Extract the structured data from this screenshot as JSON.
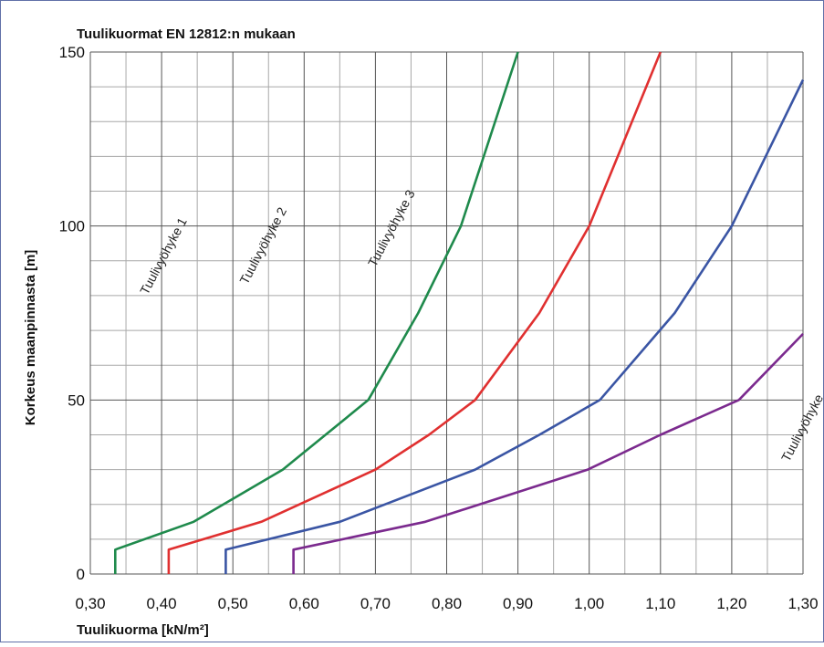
{
  "chart_data": {
    "type": "line",
    "title": "Tuulikuormat EN 12812:n mukaan",
    "xlabel": "Tuulikuorma [kN/m²]",
    "ylabel": "Korkeus maanpinnasta [m]",
    "xlim": [
      0.3,
      1.3
    ],
    "ylim": [
      0,
      150
    ],
    "x_ticks": [
      "0,30",
      "0,40",
      "0,50",
      "0,60",
      "0,70",
      "0,80",
      "0,90",
      "1,00",
      "1,10",
      "1,20",
      "1,30"
    ],
    "y_ticks": [
      "0",
      "50",
      "100",
      "150"
    ],
    "grid": true,
    "series": [
      {
        "name": "Tuulivyöhyke 1",
        "color": "#1f8a4c",
        "points": [
          [
            0.335,
            0
          ],
          [
            0.335,
            7
          ],
          [
            0.445,
            15
          ],
          [
            0.57,
            30
          ],
          [
            0.63,
            40
          ],
          [
            0.69,
            50
          ],
          [
            0.76,
            75
          ],
          [
            0.82,
            100
          ],
          [
            0.9,
            150
          ]
        ]
      },
      {
        "name": "Tuulivyöhyke 2",
        "color": "#e03030",
        "points": [
          [
            0.41,
            0
          ],
          [
            0.41,
            7
          ],
          [
            0.54,
            15
          ],
          [
            0.7,
            30
          ],
          [
            0.775,
            40
          ],
          [
            0.84,
            50
          ],
          [
            0.93,
            75
          ],
          [
            1.0,
            100
          ],
          [
            1.1,
            150
          ]
        ]
      },
      {
        "name": "Tuulivyöhyke 3",
        "color": "#3a55a4",
        "points": [
          [
            0.49,
            0
          ],
          [
            0.49,
            7
          ],
          [
            0.65,
            15
          ],
          [
            0.84,
            30
          ],
          [
            0.93,
            40
          ],
          [
            1.015,
            50
          ],
          [
            1.12,
            75
          ],
          [
            1.2,
            100
          ],
          [
            1.3,
            142
          ]
        ]
      },
      {
        "name": "Tuulivyöhyke",
        "color": "#7b2a8e",
        "points": [
          [
            0.585,
            0
          ],
          [
            0.585,
            7
          ],
          [
            0.77,
            15
          ],
          [
            0.998,
            30
          ],
          [
            1.1,
            40
          ],
          [
            1.21,
            50
          ],
          [
            1.3,
            69
          ]
        ]
      }
    ],
    "annotations": [
      {
        "text": "Tuulivyöhyke 1",
        "x": 0.38,
        "y": 80
      },
      {
        "text": "Tuulivyöhyke 2",
        "x": 0.52,
        "y": 83
      },
      {
        "text": "Tuulivyöhyke 3",
        "x": 0.7,
        "y": 88
      },
      {
        "text": "Tuulivyöhyke",
        "x": 1.28,
        "y": 32
      }
    ]
  }
}
